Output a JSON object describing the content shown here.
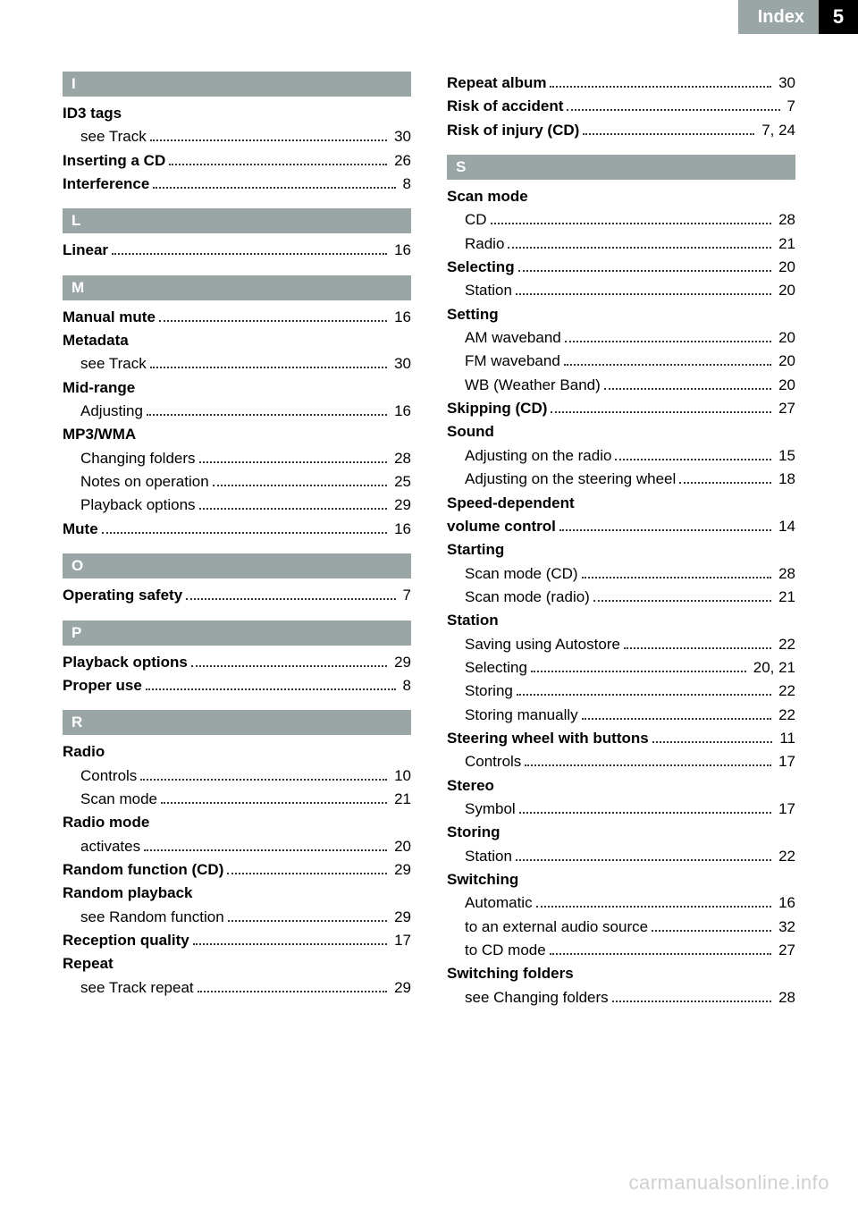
{
  "header": {
    "title": "Index",
    "page_number": "5"
  },
  "colors": {
    "section_bar_bg": "#9aa6a6",
    "section_bar_fg": "#ffffff",
    "page_num_bg": "#000000",
    "page_num_fg": "#ffffff",
    "text": "#000000",
    "watermark": "#d0d0d0",
    "background": "#ffffff"
  },
  "left_column": [
    {
      "type": "section",
      "letter": "I"
    },
    {
      "type": "entry",
      "label": "ID3 tags",
      "bold": true
    },
    {
      "type": "sub",
      "label": "see Track",
      "page": "30"
    },
    {
      "type": "entry",
      "label": "Inserting a CD",
      "bold": true,
      "page": "26"
    },
    {
      "type": "entry",
      "label": "Interference",
      "bold": true,
      "page": "8"
    },
    {
      "type": "section",
      "letter": "L"
    },
    {
      "type": "entry",
      "label": "Linear",
      "bold": true,
      "page": "16"
    },
    {
      "type": "section",
      "letter": "M"
    },
    {
      "type": "entry",
      "label": "Manual mute",
      "bold": true,
      "page": "16"
    },
    {
      "type": "entry",
      "label": "Metadata",
      "bold": true
    },
    {
      "type": "sub",
      "label": "see Track",
      "page": "30"
    },
    {
      "type": "entry",
      "label": "Mid-range",
      "bold": true
    },
    {
      "type": "sub",
      "label": "Adjusting",
      "page": "16"
    },
    {
      "type": "entry",
      "label": "MP3/WMA",
      "bold": true
    },
    {
      "type": "sub",
      "label": "Changing folders",
      "page": "28"
    },
    {
      "type": "sub",
      "label": "Notes on operation",
      "page": "25"
    },
    {
      "type": "sub",
      "label": "Playback options",
      "page": "29"
    },
    {
      "type": "entry",
      "label": "Mute",
      "bold": true,
      "page": "16"
    },
    {
      "type": "section",
      "letter": "O"
    },
    {
      "type": "entry",
      "label": "Operating safety",
      "bold": true,
      "page": "7"
    },
    {
      "type": "section",
      "letter": "P"
    },
    {
      "type": "entry",
      "label": "Playback options",
      "bold": true,
      "page": "29"
    },
    {
      "type": "entry",
      "label": "Proper use",
      "bold": true,
      "page": "8"
    },
    {
      "type": "section",
      "letter": "R"
    },
    {
      "type": "entry",
      "label": "Radio",
      "bold": true
    },
    {
      "type": "sub",
      "label": "Controls",
      "page": "10"
    },
    {
      "type": "sub",
      "label": "Scan mode",
      "page": "21"
    },
    {
      "type": "entry",
      "label": "Radio mode",
      "bold": true
    },
    {
      "type": "sub",
      "label": "activates",
      "page": "20"
    },
    {
      "type": "entry",
      "label": "Random function (CD)",
      "bold": true,
      "page": "29"
    },
    {
      "type": "entry",
      "label": "Random playback",
      "bold": true
    },
    {
      "type": "sub",
      "label": "see Random function",
      "page": "29"
    },
    {
      "type": "entry",
      "label": "Reception quality",
      "bold": true,
      "page": "17"
    },
    {
      "type": "entry",
      "label": "Repeat",
      "bold": true
    },
    {
      "type": "sub",
      "label": "see Track repeat",
      "page": "29"
    }
  ],
  "right_column": [
    {
      "type": "entry",
      "label": "Repeat album",
      "bold": true,
      "page": "30"
    },
    {
      "type": "entry",
      "label": "Risk of accident",
      "bold": true,
      "page": "7"
    },
    {
      "type": "entry",
      "label": "Risk of injury (CD)",
      "bold": true,
      "page": "7, 24"
    },
    {
      "type": "section",
      "letter": "S"
    },
    {
      "type": "entry",
      "label": "Scan mode",
      "bold": true
    },
    {
      "type": "sub",
      "label": "CD",
      "page": "28"
    },
    {
      "type": "sub",
      "label": "Radio",
      "page": "21"
    },
    {
      "type": "entry",
      "label": "Selecting",
      "bold": true,
      "page": "20"
    },
    {
      "type": "sub",
      "label": "Station",
      "page": "20"
    },
    {
      "type": "entry",
      "label": "Setting",
      "bold": true
    },
    {
      "type": "sub",
      "label": "AM waveband",
      "page": "20"
    },
    {
      "type": "sub",
      "label": "FM waveband",
      "page": "20"
    },
    {
      "type": "sub",
      "label": "WB (Weather Band)",
      "page": "20"
    },
    {
      "type": "entry",
      "label": "Skipping (CD)",
      "bold": true,
      "page": "27"
    },
    {
      "type": "entry",
      "label": "Sound",
      "bold": true
    },
    {
      "type": "sub",
      "label": "Adjusting on the radio",
      "page": "15"
    },
    {
      "type": "sub",
      "label": "Adjusting on the steering wheel",
      "page": "18"
    },
    {
      "type": "entry",
      "label": "Speed-dependent",
      "bold": true
    },
    {
      "type": "entry",
      "label": "volume control",
      "bold": true,
      "page": "14"
    },
    {
      "type": "entry",
      "label": "Starting",
      "bold": true
    },
    {
      "type": "sub",
      "label": "Scan mode (CD)",
      "page": "28"
    },
    {
      "type": "sub",
      "label": "Scan mode (radio)",
      "page": "21"
    },
    {
      "type": "entry",
      "label": "Station",
      "bold": true
    },
    {
      "type": "sub",
      "label": "Saving using Autostore",
      "page": "22"
    },
    {
      "type": "sub",
      "label": "Selecting",
      "page": "20, 21"
    },
    {
      "type": "sub",
      "label": "Storing",
      "page": "22"
    },
    {
      "type": "sub",
      "label": "Storing manually",
      "page": "22"
    },
    {
      "type": "entry",
      "label": "Steering wheel with buttons",
      "bold": true,
      "page": "11"
    },
    {
      "type": "sub",
      "label": "Controls",
      "page": "17"
    },
    {
      "type": "entry",
      "label": "Stereo",
      "bold": true
    },
    {
      "type": "sub",
      "label": "Symbol",
      "page": "17"
    },
    {
      "type": "entry",
      "label": "Storing",
      "bold": true
    },
    {
      "type": "sub",
      "label": "Station",
      "page": "22"
    },
    {
      "type": "entry",
      "label": "Switching",
      "bold": true
    },
    {
      "type": "sub",
      "label": "Automatic",
      "page": "16"
    },
    {
      "type": "sub",
      "label": "to an external audio source",
      "page": "32"
    },
    {
      "type": "sub",
      "label": "to CD mode",
      "page": "27"
    },
    {
      "type": "entry",
      "label": "Switching folders",
      "bold": true
    },
    {
      "type": "sub",
      "label": "see Changing folders",
      "page": "28"
    }
  ],
  "watermark": "carmanualsonline.info"
}
